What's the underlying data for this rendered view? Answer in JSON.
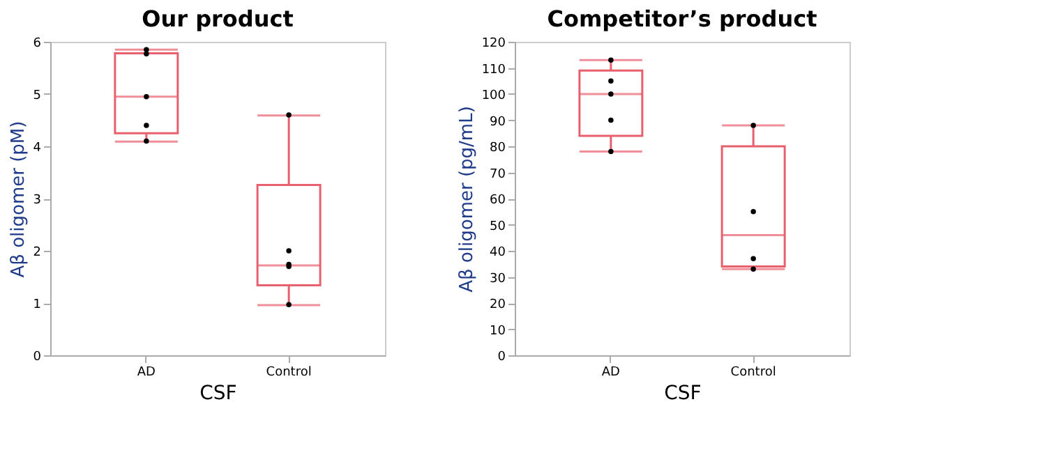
{
  "chart_data": [
    {
      "type": "box",
      "title": "Our product",
      "xlabel": "CSF",
      "ylabel": "Aβ oligomer (pM)",
      "categories": [
        "AD",
        "Control"
      ],
      "ylim": [
        0,
        6
      ],
      "yticks": [
        0,
        1,
        2,
        3,
        4,
        5,
        6
      ],
      "grid": false,
      "series": [
        {
          "color": "#e8606e",
          "boxes": [
            {
              "low": 4.09,
              "q1": 4.25,
              "median": 4.95,
              "q3": 5.78,
              "high": 5.85
            },
            {
              "low": 0.96,
              "q1": 1.34,
              "median": 1.72,
              "q3": 3.26,
              "high": 4.59
            }
          ]
        },
        {
          "type": "scatter",
          "color": "#000000",
          "x": [
            "AD",
            "AD",
            "AD",
            "AD",
            "AD",
            "Control",
            "Control",
            "Control",
            "Control",
            "Control"
          ],
          "values": [
            5.85,
            5.77,
            4.95,
            4.4,
            4.1,
            4.6,
            2.0,
            1.74,
            1.7,
            0.97
          ]
        }
      ]
    },
    {
      "type": "box",
      "title": "Competitor’s product",
      "xlabel": "CSF",
      "ylabel": "Aβ oligomer (pg/mL)",
      "categories": [
        "AD",
        "Control"
      ],
      "ylim": [
        0,
        120
      ],
      "yticks": [
        0,
        10,
        20,
        30,
        40,
        50,
        60,
        70,
        80,
        90,
        100,
        110,
        120
      ],
      "grid": false,
      "series": [
        {
          "color": "#e8606e",
          "boxes": [
            {
              "low": 78,
              "q1": 84,
              "median": 100,
              "q3": 109,
              "high": 113
            },
            {
              "low": 33,
              "q1": 34,
              "median": 46,
              "q3": 80,
              "high": 88
            }
          ]
        },
        {
          "type": "scatter",
          "color": "#000000",
          "x": [
            "AD",
            "AD",
            "AD",
            "AD",
            "AD",
            "Control",
            "Control",
            "Control",
            "Control"
          ],
          "values": [
            113,
            105,
            100,
            90,
            78,
            88,
            55,
            37,
            33
          ]
        }
      ]
    }
  ]
}
